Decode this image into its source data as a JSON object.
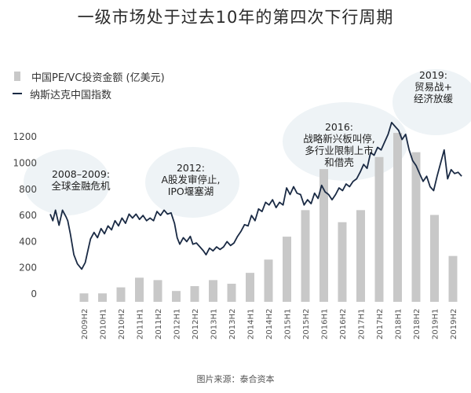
{
  "chart_data": {
    "type": "bar",
    "title": "一级市场处于过去10年的第四次下行周期",
    "source": "图片来源：泰合资本",
    "series": [
      {
        "name": "中国PE/VC投资金额 (亿美元)",
        "type": "bar",
        "color": "#c8c8c8"
      },
      {
        "name": "纳斯达克中国指数",
        "type": "line",
        "color": "#1a2a44"
      }
    ],
    "categories": [
      "2009H2",
      "2010H1",
      "2010H2",
      "2011H1",
      "2011H2",
      "2012H1",
      "2012H2",
      "2013H1",
      "2013H2",
      "2014H1",
      "2014H2",
      "2015H1",
      "2015H2",
      "2016H1",
      "2016H2",
      "2017H1",
      "2017H2",
      "2018H1",
      "2018H2",
      "2019H1",
      "2019H2"
    ],
    "bar_values": [
      35,
      35,
      60,
      100,
      90,
      45,
      65,
      90,
      75,
      120,
      175,
      270,
      380,
      550,
      330,
      380,
      600,
      700,
      620,
      360,
      190
    ],
    "line_index": [
      [
        0,
        610
      ],
      [
        0.15,
        560
      ],
      [
        0.3,
        640
      ],
      [
        0.5,
        525
      ],
      [
        0.7,
        640
      ],
      [
        0.9,
        590
      ],
      [
        1.0,
        560
      ],
      [
        1.15,
        460
      ],
      [
        1.35,
        300
      ],
      [
        1.55,
        230
      ],
      [
        1.8,
        190
      ],
      [
        2.0,
        240
      ],
      [
        2.15,
        330
      ],
      [
        2.3,
        420
      ],
      [
        2.5,
        470
      ],
      [
        2.7,
        430
      ],
      [
        2.9,
        500
      ],
      [
        3.1,
        460
      ],
      [
        3.3,
        520
      ],
      [
        3.5,
        490
      ],
      [
        3.7,
        560
      ],
      [
        3.9,
        520
      ],
      [
        4.1,
        580
      ],
      [
        4.3,
        540
      ],
      [
        4.5,
        610
      ],
      [
        4.7,
        580
      ],
      [
        4.9,
        610
      ],
      [
        5.1,
        570
      ],
      [
        5.3,
        600
      ],
      [
        5.5,
        560
      ],
      [
        5.7,
        580
      ],
      [
        5.9,
        560
      ],
      [
        6.1,
        630
      ],
      [
        6.3,
        600
      ],
      [
        6.5,
        640
      ],
      [
        6.7,
        610
      ],
      [
        6.9,
        620
      ],
      [
        7.1,
        540
      ],
      [
        7.25,
        430
      ],
      [
        7.4,
        380
      ],
      [
        7.6,
        430
      ],
      [
        7.8,
        400
      ],
      [
        8.0,
        440
      ],
      [
        8.15,
        380
      ],
      [
        8.35,
        390
      ],
      [
        8.55,
        360
      ],
      [
        8.75,
        330
      ],
      [
        8.9,
        300
      ],
      [
        9.1,
        350
      ],
      [
        9.3,
        330
      ],
      [
        9.5,
        360
      ],
      [
        9.7,
        340
      ],
      [
        9.9,
        360
      ],
      [
        10.1,
        400
      ],
      [
        10.3,
        370
      ],
      [
        10.5,
        390
      ],
      [
        10.7,
        440
      ],
      [
        10.9,
        480
      ],
      [
        11.1,
        530
      ],
      [
        11.3,
        520
      ],
      [
        11.5,
        600
      ],
      [
        11.7,
        560
      ],
      [
        11.9,
        650
      ],
      [
        12.1,
        630
      ],
      [
        12.3,
        700
      ],
      [
        12.5,
        680
      ],
      [
        12.7,
        720
      ],
      [
        12.9,
        660
      ],
      [
        13.1,
        700
      ],
      [
        13.3,
        680
      ],
      [
        13.5,
        810
      ],
      [
        13.7,
        760
      ],
      [
        13.9,
        820
      ],
      [
        14.1,
        770
      ],
      [
        14.3,
        760
      ],
      [
        14.5,
        680
      ],
      [
        14.7,
        720
      ],
      [
        14.9,
        690
      ],
      [
        15.1,
        770
      ],
      [
        15.3,
        730
      ],
      [
        15.5,
        830
      ],
      [
        15.7,
        780
      ],
      [
        15.9,
        760
      ],
      [
        16.1,
        720
      ],
      [
        16.3,
        760
      ],
      [
        16.5,
        810
      ],
      [
        16.7,
        790
      ],
      [
        16.9,
        840
      ],
      [
        17.1,
        820
      ],
      [
        17.3,
        860
      ],
      [
        17.5,
        880
      ],
      [
        17.7,
        930
      ],
      [
        17.9,
        990
      ],
      [
        18.1,
        960
      ],
      [
        18.3,
        1080
      ],
      [
        18.5,
        1060
      ],
      [
        18.7,
        1120
      ],
      [
        18.9,
        1100
      ],
      [
        19.1,
        1160
      ],
      [
        19.3,
        1220
      ],
      [
        19.5,
        1310
      ],
      [
        19.7,
        1280
      ],
      [
        19.9,
        1250
      ],
      [
        20.1,
        1180
      ],
      [
        20.3,
        1220
      ],
      [
        20.5,
        1100
      ],
      [
        20.7,
        1020
      ],
      [
        20.9,
        980
      ],
      [
        21.1,
        920
      ],
      [
        21.3,
        860
      ],
      [
        21.5,
        900
      ],
      [
        21.7,
        820
      ],
      [
        21.9,
        790
      ],
      [
        22.1,
        900
      ],
      [
        22.3,
        1000
      ],
      [
        22.5,
        1100
      ],
      [
        22.7,
        880
      ],
      [
        22.9,
        950
      ],
      [
        23.1,
        920
      ],
      [
        23.3,
        930
      ],
      [
        23.5,
        900
      ]
    ],
    "y_ticks": [
      "1200",
      "1000",
      "800",
      "600",
      "400",
      "200",
      "0"
    ],
    "ylim": [
      0,
      1350
    ],
    "annotations": [
      {
        "lines": [
          "2008–2009:",
          "全球金融危机"
        ]
      },
      {
        "lines": [
          "2012:",
          "A股发审停止,",
          "IPO堰塞湖"
        ]
      },
      {
        "lines": [
          "2016:",
          "战略新兴板叫停,",
          "多行业限制上市",
          "和借壳"
        ]
      },
      {
        "lines": [
          "2019:",
          "贸易战+",
          "经济放缓"
        ]
      }
    ]
  }
}
